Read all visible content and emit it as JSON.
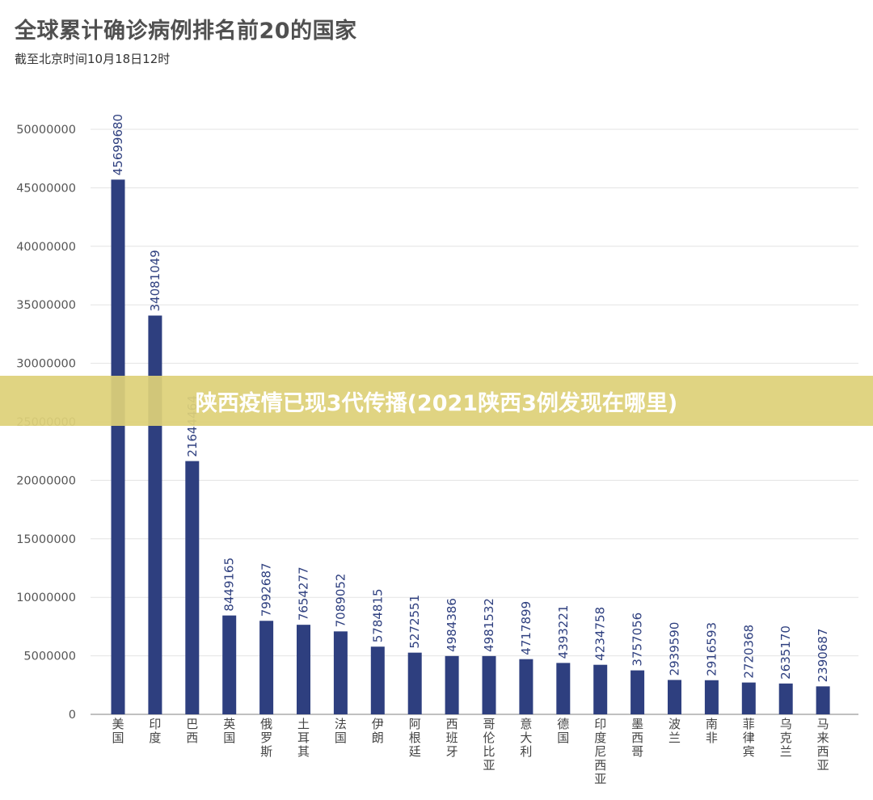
{
  "chart_data": {
    "type": "bar",
    "title": "全球累计确诊病例排名前20的国家",
    "subtitle": "截至北京时间10月18日12时",
    "categories": [
      "美国",
      "印度",
      "巴西",
      "英国",
      "俄罗斯",
      "土耳其",
      "法国",
      "伊朗",
      "阿根廷",
      "西班牙",
      "哥伦比亚",
      "意大利",
      "德国",
      "印度尼西亚",
      "墨西哥",
      "波兰",
      "南非",
      "菲律宾",
      "乌克兰",
      "马来西亚"
    ],
    "values": [
      45699680,
      34081049,
      21644464,
      8449165,
      7992687,
      7654277,
      7089052,
      5784815,
      5272551,
      4984386,
      4981532,
      4717899,
      4393221,
      4234758,
      3757056,
      2939590,
      2916593,
      2720368,
      2635170,
      2390687
    ],
    "data_labels": [
      "45699680",
      "34081049",
      "21644464",
      "8449165",
      "7992687",
      "7654277",
      "7089052",
      "5784815",
      "5272551",
      "4984386",
      "4981532",
      "4717899",
      "4393221",
      "4234758",
      "3757056",
      "2939590",
      "2916593",
      "2720368",
      "2635170",
      "2390687"
    ],
    "yticks": [
      "0",
      "5000000",
      "10000000",
      "15000000",
      "20000000",
      "25000000",
      "30000000",
      "35000000",
      "40000000",
      "45000000",
      "50000000"
    ],
    "ylim": [
      0,
      50000000
    ],
    "grid": true,
    "bar_color": "#2e3f7f"
  },
  "overlay": {
    "banner_text": "陕西疫情已现3代传播(2021陕西3例发现在哪里)"
  }
}
